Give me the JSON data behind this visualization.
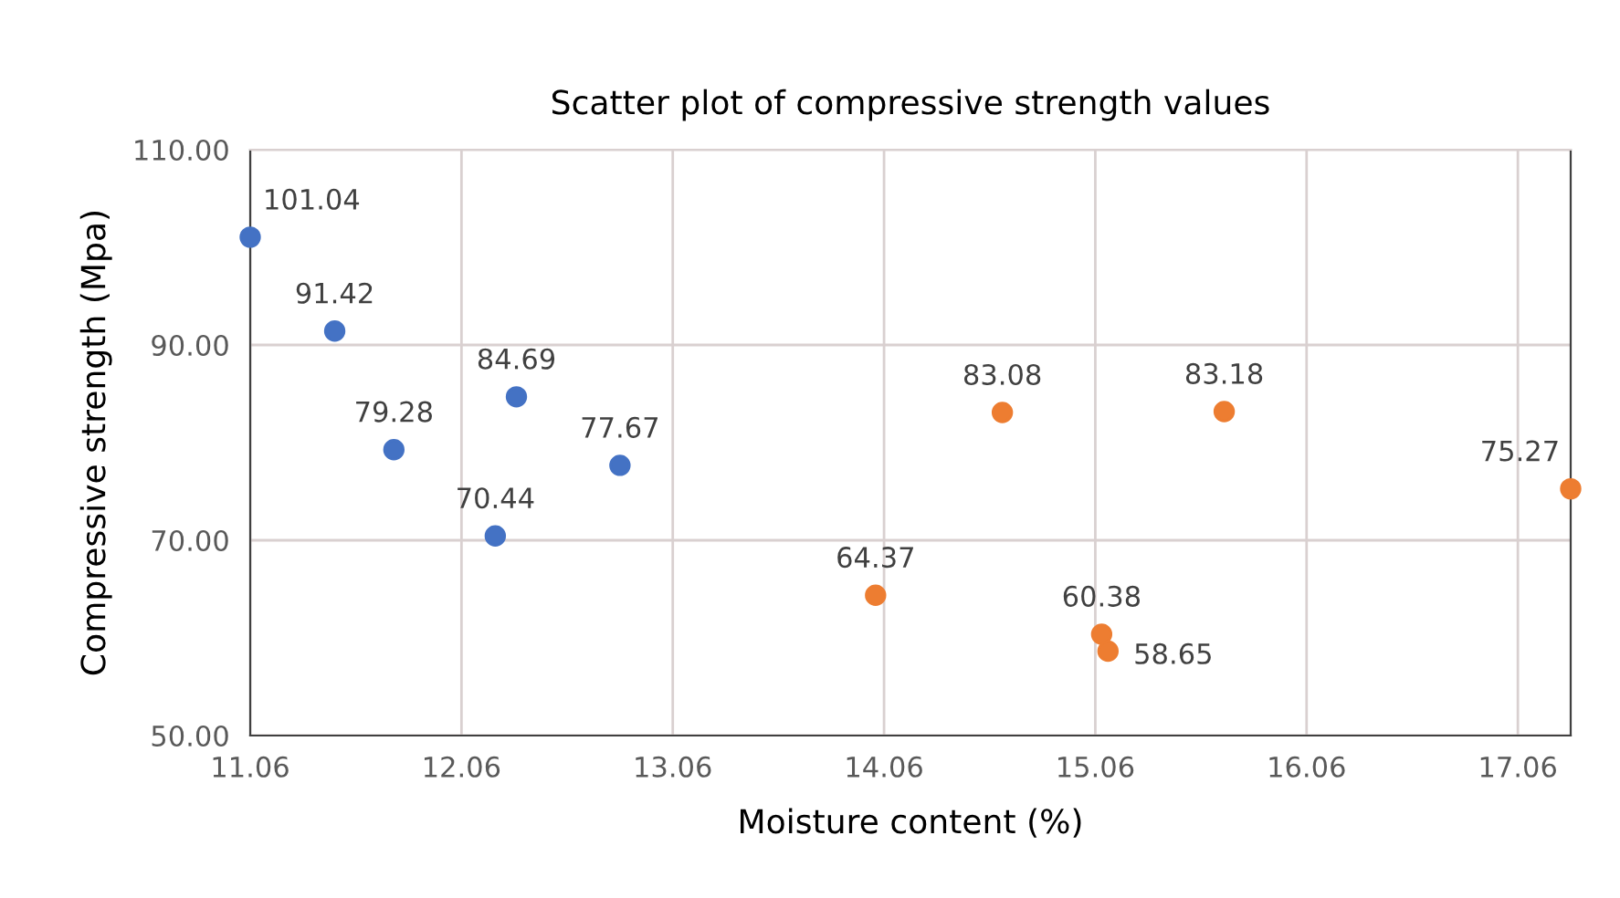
{
  "chart_data": {
    "type": "scatter",
    "title": "Scatter plot of compressive strength values",
    "xlabel": "Moisture content (%)",
    "ylabel": "Compressive strength (Mpa)",
    "series": [
      {
        "color": "#4472c4",
        "x": [
          11.06,
          11.46,
          11.74,
          12.22,
          12.32,
          12.81
        ],
        "values": [
          101.04,
          91.42,
          79.28,
          70.44,
          84.69,
          77.67
        ]
      },
      {
        "color": "#ed7d31",
        "x": [
          14.02,
          14.62,
          15.09,
          15.12,
          15.67,
          17.31
        ],
        "values": [
          64.37,
          83.08,
          60.38,
          58.65,
          83.18,
          75.27
        ]
      }
    ],
    "xlim": [
      11.06,
      17.31
    ],
    "xticks": [
      {
        "value": 11.06,
        "label": "11.06"
      },
      {
        "value": 12.06,
        "label": "12.06"
      },
      {
        "value": 13.06,
        "label": "13.06"
      },
      {
        "value": 14.06,
        "label": "14.06"
      },
      {
        "value": 15.06,
        "label": "15.06"
      },
      {
        "value": 16.06,
        "label": "16.06"
      },
      {
        "value": 17.06,
        "label": "17.06"
      }
    ],
    "ylim": [
      50,
      110
    ],
    "yticks": [
      {
        "value": 50,
        "label": "50.00"
      },
      {
        "value": 70,
        "label": "70.00"
      },
      {
        "value": 90,
        "label": "90.00"
      },
      {
        "value": 110,
        "label": "110.00"
      }
    ],
    "data_labels": true,
    "grid": true
  }
}
